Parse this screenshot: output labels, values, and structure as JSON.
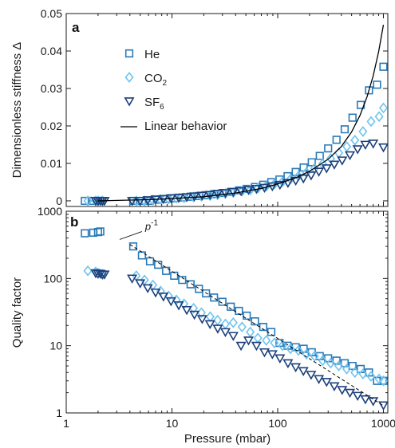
{
  "colors": {
    "he": "#2a7ab8",
    "co2": "#6fc3ee",
    "sf6": "#1b3f7a",
    "line": "#000000",
    "axis": "#1a1a1a"
  },
  "chart_data": [
    {
      "type": "scatter",
      "panel_label": "a",
      "xlabel": "",
      "ylabel": "Dimensionless stiffness Δ",
      "xscale": "log",
      "xlim": [
        1,
        1100
      ],
      "ylim": [
        -0.0015,
        0.05
      ],
      "yticks": [
        "0",
        "0.01",
        "0.02",
        "0.03",
        "0.04",
        "0.05"
      ],
      "grid": false,
      "legend_position": "top-left",
      "legend": [
        {
          "key": "he",
          "label": "He",
          "sub": "",
          "marker": "square"
        },
        {
          "key": "co2",
          "label": "CO",
          "sub": "2",
          "marker": "diamond"
        },
        {
          "key": "sf6",
          "label": "SF",
          "sub": "6",
          "marker": "triangle-down"
        },
        {
          "key": "line",
          "label": "Linear behavior",
          "sub": "",
          "marker": "line"
        }
      ],
      "series": [
        {
          "key": "he",
          "marker": "square",
          "x": [
            1.5,
            1.8,
            2.0,
            2.1,
            4.3,
            5.2,
            6.2,
            7.4,
            8.8,
            10.5,
            12.5,
            15,
            18,
            21,
            25,
            30,
            36,
            43,
            51,
            61,
            73,
            87,
            104,
            124,
            148,
            176,
            210,
            250,
            300,
            360,
            430,
            510,
            610,
            730,
            870,
            1000
          ],
          "y": [
            0.0,
            0.0,
            0.0,
            0.0,
            0.0,
            0.0,
            0.0,
            0.0003,
            0.0005,
            0.0007,
            0.0009,
            0.0011,
            0.0013,
            0.0015,
            0.0018,
            0.0021,
            0.0024,
            0.0028,
            0.0032,
            0.0037,
            0.0043,
            0.005,
            0.0057,
            0.0066,
            0.0077,
            0.0089,
            0.0103,
            0.012,
            0.014,
            0.0163,
            0.0191,
            0.0222,
            0.0256,
            0.0295,
            0.031,
            0.0358
          ]
        },
        {
          "key": "co2",
          "marker": "diamond",
          "x": [
            1.6,
            1.9,
            2.0,
            2.2,
            4.6,
            5.5,
            6.6,
            7.8,
            9.3,
            11,
            13,
            16,
            19,
            23,
            27,
            32,
            38,
            46,
            55,
            65,
            78,
            93,
            111,
            132,
            157,
            187,
            223,
            266,
            317,
            378,
            450,
            537,
            640,
            763,
            910,
            1000
          ],
          "y": [
            0.0,
            0.0,
            0.0,
            0.0,
            0.0,
            0.0,
            0.0002,
            0.0004,
            0.0005,
            0.0007,
            0.0008,
            0.001,
            0.0012,
            0.0014,
            0.0016,
            0.0019,
            0.0022,
            0.0026,
            0.0029,
            0.0034,
            0.0039,
            0.0045,
            0.0051,
            0.0058,
            0.0066,
            0.0076,
            0.0087,
            0.0099,
            0.0113,
            0.0128,
            0.0145,
            0.0162,
            0.0185,
            0.0212,
            0.0225,
            0.0248
          ]
        },
        {
          "key": "sf6",
          "marker": "triangle-down",
          "x": [
            1.9,
            2.0,
            2.1,
            2.2,
            2.3,
            4.2,
            5.0,
            5.9,
            7.0,
            8.3,
            9.8,
            11.6,
            13.8,
            16.3,
            19.3,
            22.9,
            27.1,
            32,
            38,
            45,
            53,
            63,
            75,
            89,
            105,
            125,
            148,
            175,
            207,
            245,
            290,
            343,
            407,
            482,
            570,
            675,
            800,
            1000
          ],
          "y": [
            0.0,
            0.0,
            0.0,
            0.0,
            0.0,
            0.0,
            0.0,
            0.0002,
            0.0004,
            0.0005,
            0.0007,
            0.0008,
            0.001,
            0.0012,
            0.0014,
            0.0016,
            0.0019,
            0.0021,
            0.0024,
            0.0026,
            0.0029,
            0.0032,
            0.0035,
            0.0039,
            0.0043,
            0.0048,
            0.0054,
            0.006,
            0.0068,
            0.0078,
            0.0087,
            0.0097,
            0.0108,
            0.0122,
            0.0138,
            0.015,
            0.0153,
            0.0143
          ]
        },
        {
          "key": "line",
          "marker": "line",
          "name": "Linear behavior",
          "x": [
            2,
            4,
            7,
            10,
            20,
            40,
            70,
            100,
            150,
            200,
            300,
            400,
            500,
            600,
            700,
            800,
            900,
            1000
          ],
          "y": [
            0.0,
            0.0002,
            0.0004,
            0.0006,
            0.0011,
            0.0021,
            0.0033,
            0.0045,
            0.0062,
            0.0079,
            0.0111,
            0.0145,
            0.0184,
            0.0228,
            0.0278,
            0.0334,
            0.0398,
            0.047
          ]
        }
      ]
    },
    {
      "type": "scatter",
      "panel_label": "b",
      "xlabel": "Pressure (mbar)",
      "ylabel": "Quality factor",
      "xscale": "log",
      "yscale": "log",
      "xlim": [
        1,
        1100
      ],
      "ylim": [
        1,
        1000
      ],
      "xticks": [
        "1",
        "10",
        "100",
        "1000"
      ],
      "yticks": [
        "1",
        "10",
        "100",
        "1000"
      ],
      "grid": false,
      "annotation": {
        "text": "p",
        "sup": "-1"
      },
      "series": [
        {
          "key": "he",
          "marker": "square",
          "x": [
            1.5,
            1.8,
            2.0,
            2.1,
            4.3,
            5.2,
            6.2,
            7.4,
            8.8,
            10.5,
            12.5,
            15,
            18,
            21,
            25,
            30,
            36,
            43,
            51,
            61,
            73,
            87,
            104,
            124,
            148,
            176,
            210,
            250,
            300,
            360,
            430,
            510,
            610,
            730,
            870,
            1000
          ],
          "y": [
            470,
            480,
            490,
            500,
            300,
            220,
            180,
            160,
            130,
            110,
            95,
            82,
            70,
            60,
            52,
            45,
            38,
            33,
            28,
            23,
            19,
            16,
            11,
            10,
            9.5,
            9,
            8,
            7,
            6.5,
            6,
            5.5,
            5,
            4.5,
            4,
            3,
            3
          ]
        },
        {
          "key": "co2",
          "marker": "diamond",
          "x": [
            1.6,
            1.9,
            2.0,
            2.2,
            4.6,
            5.5,
            6.6,
            7.8,
            9.3,
            11,
            13,
            16,
            19,
            23,
            27,
            32,
            38,
            46,
            55,
            65,
            78,
            93,
            111,
            132,
            157,
            187,
            223,
            266,
            317,
            378,
            450,
            537,
            640,
            763,
            910,
            1000
          ],
          "y": [
            130,
            125,
            120,
            115,
            110,
            95,
            80,
            65,
            55,
            48,
            42,
            36,
            31,
            27,
            24,
            21,
            22,
            19,
            16,
            13,
            12,
            11,
            10,
            9,
            8.5,
            7.5,
            7,
            6,
            5.5,
            5,
            4.5,
            4,
            3.8,
            3.5,
            3.2,
            3
          ]
        },
        {
          "key": "sf6",
          "marker": "triangle-down",
          "x": [
            1.9,
            2.0,
            2.1,
            2.2,
            2.3,
            4.2,
            5.0,
            5.9,
            7.0,
            8.3,
            9.8,
            11.6,
            13.8,
            16.3,
            19.3,
            22.9,
            27.1,
            32,
            38,
            45,
            53,
            63,
            75,
            89,
            105,
            125,
            148,
            175,
            207,
            245,
            290,
            343,
            407,
            482,
            570,
            675,
            800,
            1000
          ],
          "y": [
            120,
            118,
            118,
            115,
            115,
            100,
            85,
            72,
            62,
            54,
            46,
            40,
            34,
            29,
            25,
            21,
            18,
            16,
            14,
            10,
            12,
            10,
            8,
            7.5,
            6.5,
            5.5,
            4.8,
            4.2,
            3.7,
            3.2,
            2.9,
            2.5,
            2.2,
            2.0,
            1.8,
            1.6,
            1.5,
            1.3
          ]
        },
        {
          "key": "line",
          "marker": "dashed",
          "x": [
            4,
            10,
            100,
            1000
          ],
          "y": [
            320,
            128,
            12.8,
            1.28
          ]
        }
      ]
    }
  ]
}
